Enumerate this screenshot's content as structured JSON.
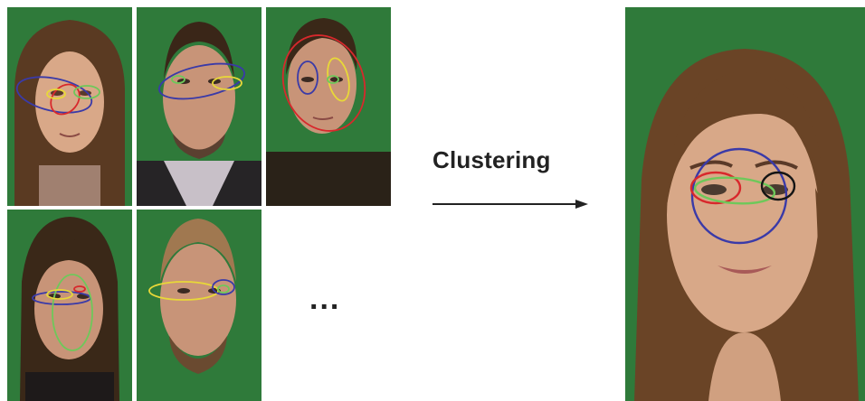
{
  "diagram": {
    "caption": "Clustering",
    "ellipsis": "...",
    "colors": {
      "background": "#2f7a3a",
      "red": "#d8282c",
      "blue": "#3a3aa8",
      "yellow": "#e8d838",
      "green": "#6ec85a",
      "black": "#151515",
      "arrow": "#222222"
    }
  }
}
